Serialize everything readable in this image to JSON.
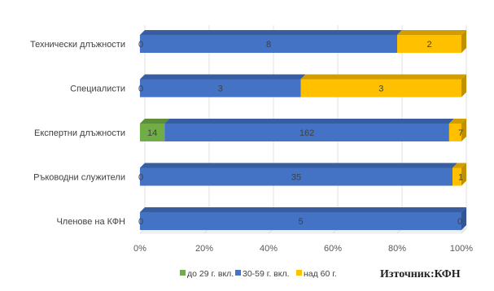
{
  "chart_data": {
    "type": "bar",
    "orientation": "horizontal",
    "stacked": "percent",
    "categories": [
      "Технически длъжности",
      "Специалисти",
      "Експертни длъжности",
      "Ръководни служители",
      "Членове на КФН"
    ],
    "series": [
      {
        "name": "до 29 г. вкл.",
        "color": "#70ad47",
        "values": [
          0,
          0,
          14,
          0,
          0
        ]
      },
      {
        "name": "30-59 г. вкл.",
        "color": "#4472c4",
        "values": [
          8,
          3,
          162,
          35,
          5
        ]
      },
      {
        "name": "над 60 г.",
        "color": "#ffc000",
        "values": [
          2,
          3,
          7,
          1,
          0
        ]
      }
    ],
    "x_ticks": [
      "0%",
      "20%",
      "40%",
      "60%",
      "80%",
      "100%"
    ],
    "xlim": [
      0,
      100
    ],
    "grid": true,
    "legend_position": "bottom"
  },
  "source_note": "Източник:КФН"
}
